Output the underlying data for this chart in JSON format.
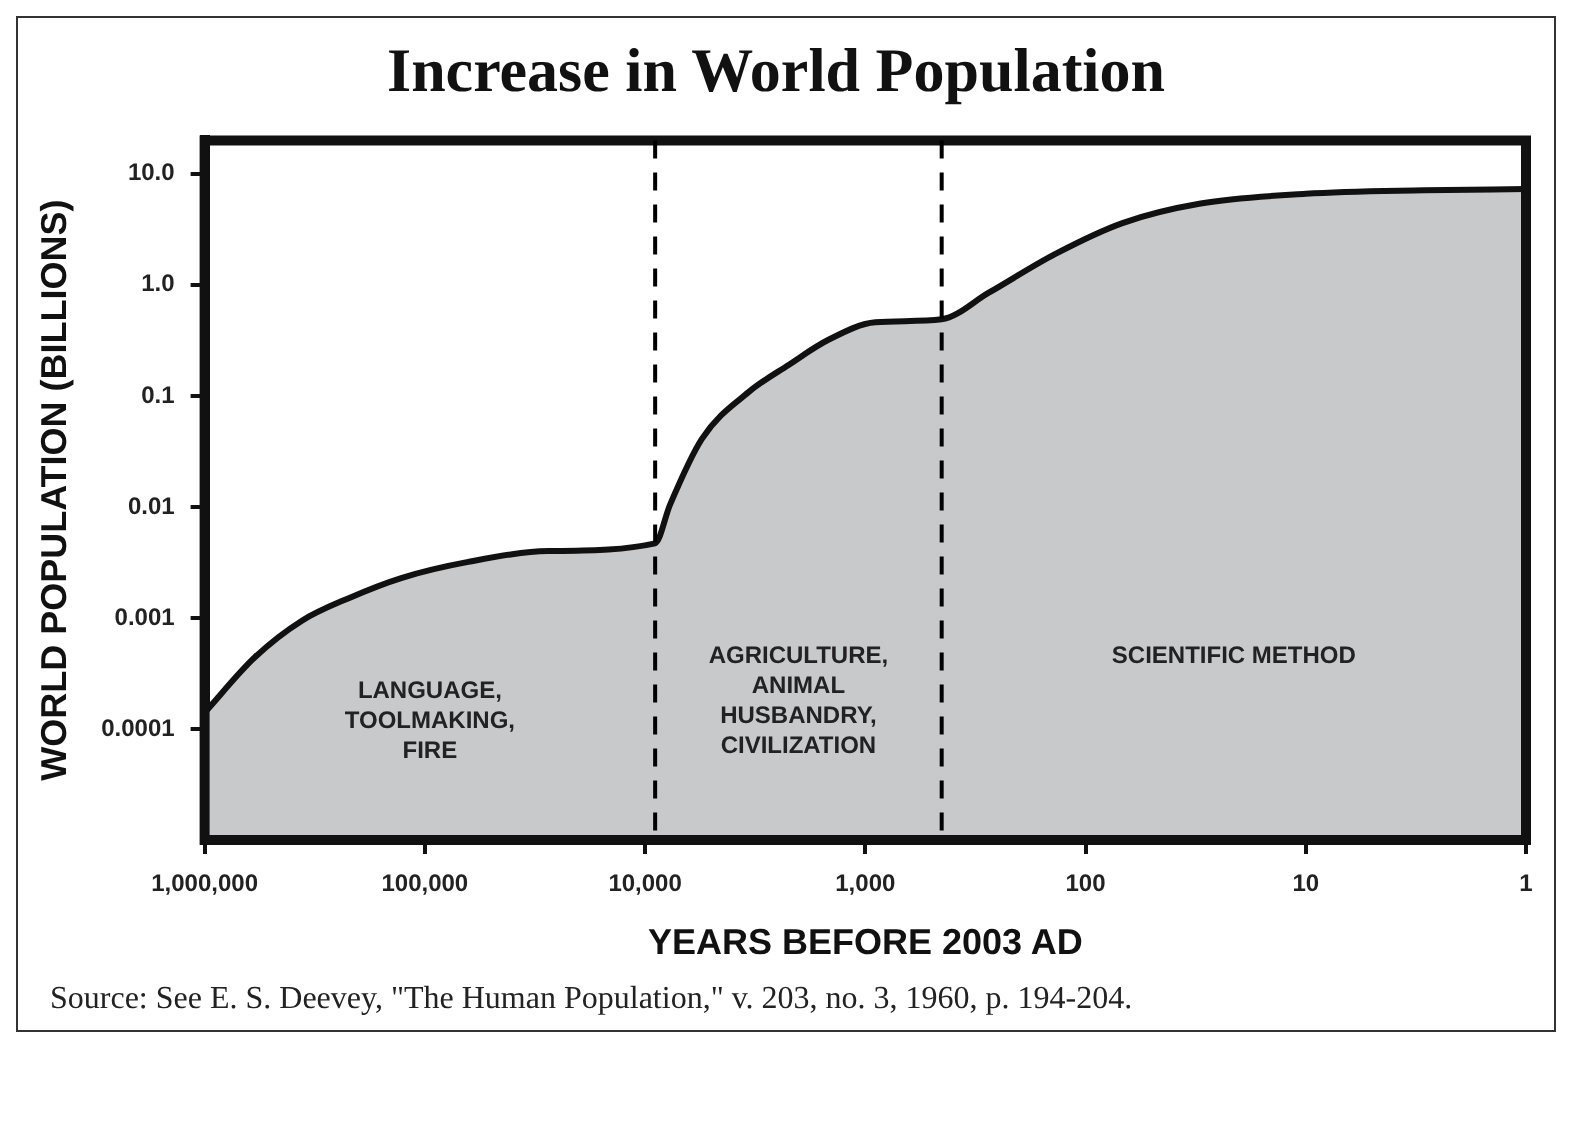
{
  "chart_data": {
    "type": "area",
    "title": "Increase in World Population",
    "xlabel": "YEARS BEFORE 2003 AD",
    "ylabel": "WORLD POPULATION (BILLIONS)",
    "x": [
      1000000,
      593000,
      363000,
      223000,
      127000,
      63500,
      27500,
      9000,
      7700,
      5520,
      3390,
      2230,
      1470,
      900,
      450,
      275,
      137,
      68,
      30,
      10,
      2.9,
      1
    ],
    "series": [
      {
        "color": "#c8c9cb",
        "values": [
          0.00014,
          0.00044,
          0.00094,
          0.0015,
          0.0023,
          0.0032,
          0.004,
          0.0047,
          0.0105,
          0.041,
          0.108,
          0.19,
          0.32,
          0.46,
          0.49,
          0.85,
          1.9,
          3.6,
          5.4,
          6.6,
          7.1,
          7.3
        ]
      }
    ],
    "log": "xy",
    "xlim": [
      1000000,
      1
    ],
    "ylim": [
      1e-05,
      20
    ],
    "xticks": [
      {
        "value": 1000000,
        "label": "1,000,000"
      },
      {
        "value": 100000,
        "label": "100,000"
      },
      {
        "value": 10000,
        "label": "10,000"
      },
      {
        "value": 1000,
        "label": "1,000"
      },
      100,
      10,
      1
    ],
    "yticks": [
      {
        "value": 10,
        "label": "10.0"
      },
      {
        "value": 1,
        "label": "1.0"
      },
      0.1,
      0.01,
      0.001,
      0.0001
    ],
    "grid": false,
    "legend": false,
    "marker": "none",
    "ref_lines": [
      {
        "axis": "x",
        "value": 9000,
        "color": "#000000",
        "line_style": "dashed"
      },
      {
        "axis": "x",
        "value": 450,
        "color": "#000000",
        "line_style": "dashed"
      }
    ],
    "annotations": [
      "LANGUAGE,\nTOOLMAKING,\nFIRE",
      "AGRICULTURE,\nANIMAL\nHUSBANDRY,\nCIVILIZATION",
      "SCIENTIFIC METHOD",
      "Source: See E. S. Deevey, \"The Human Population,\" v. 203, no. 3, 1960, p. 194-204."
    ]
  }
}
